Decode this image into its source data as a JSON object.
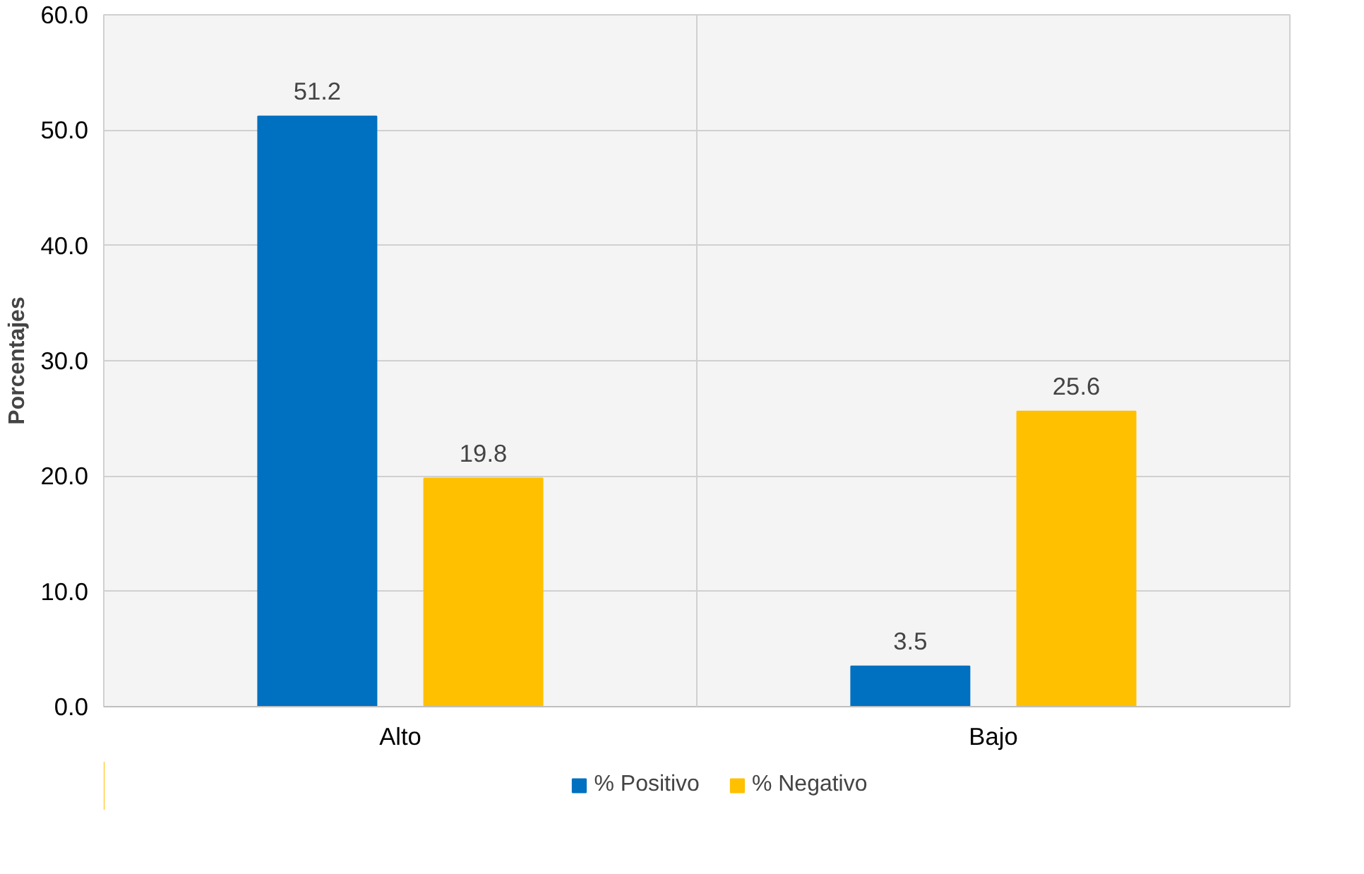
{
  "chart_data": {
    "type": "bar",
    "ylabel": "Porcentajes",
    "categories": [
      "Alto",
      "Bajo"
    ],
    "series": [
      {
        "name": "% Positivo",
        "color": "#0070c0",
        "values": [
          51.2,
          3.5
        ]
      },
      {
        "name": "% Negativo",
        "color": "#ffc000",
        "values": [
          19.8,
          25.6
        ]
      }
    ],
    "ylim": [
      0,
      60
    ],
    "yticks": [
      {
        "value": 0,
        "label": "0.0"
      },
      {
        "value": 10,
        "label": "10.0"
      },
      {
        "value": 20,
        "label": "20.0"
      },
      {
        "value": 30,
        "label": "30.0"
      },
      {
        "value": 40,
        "label": "40.0"
      },
      {
        "value": 50,
        "label": "50.0"
      },
      {
        "value": 60,
        "label": "60.0"
      }
    ],
    "grid": true,
    "legend": "bottom",
    "data_labels": true
  }
}
